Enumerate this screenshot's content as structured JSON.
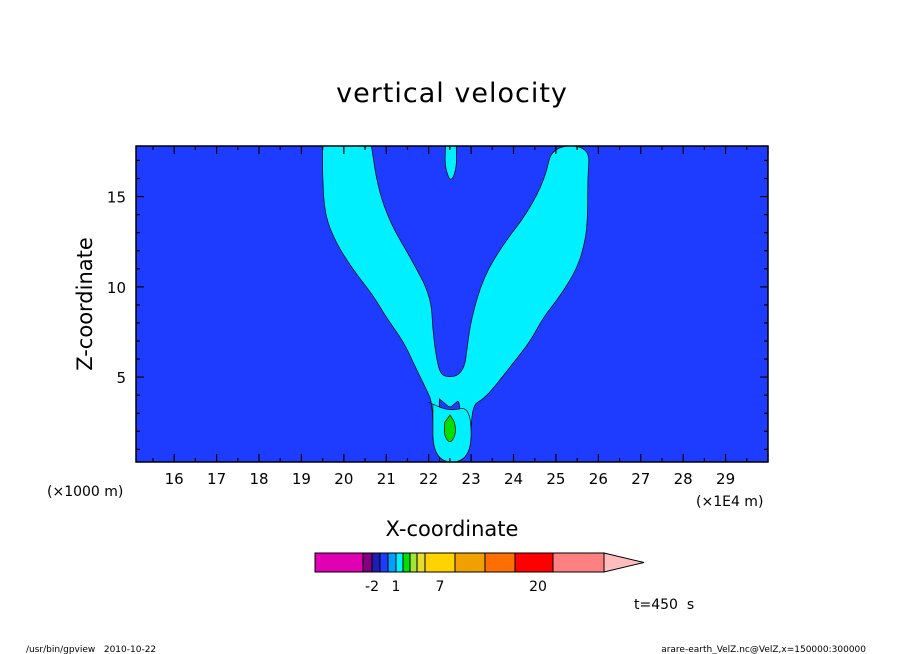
{
  "chart_data": {
    "type": "contour",
    "title": "vertical velocity",
    "xlabel": "X-coordinate",
    "ylabel": "Z-coordinate",
    "x_unit": "(×1E4 m)",
    "y_unit": "(×1000 m)",
    "xlim": [
      15.1,
      30.0
    ],
    "ylim": [
      0.3,
      17.8
    ],
    "x_ticks": [
      "16",
      "17",
      "18",
      "19",
      "20",
      "21",
      "22",
      "23",
      "24",
      "25",
      "26",
      "27",
      "28",
      "29"
    ],
    "y_ticks": [
      "5",
      "10",
      "15"
    ],
    "x_tick_values": [
      16,
      17,
      18,
      19,
      20,
      21,
      22,
      23,
      24,
      25,
      26,
      27,
      28,
      29
    ],
    "y_tick_values": [
      5,
      10,
      15
    ],
    "background_color": "#1e3cff",
    "regions": [
      {
        "name": "cyan-plume",
        "color": "#00f0ff",
        "points": [
          [
            19.5,
            17.8
          ],
          [
            19.5,
            16.0
          ],
          [
            19.55,
            14.0
          ],
          [
            19.8,
            12.5
          ],
          [
            20.2,
            11.0
          ],
          [
            20.7,
            9.5
          ],
          [
            21.0,
            8.3
          ],
          [
            21.4,
            7.0
          ],
          [
            21.7,
            5.5
          ],
          [
            21.95,
            4.3
          ],
          [
            22.1,
            3.5
          ],
          [
            22.1,
            0.3
          ],
          [
            23.0,
            0.3
          ],
          [
            23.0,
            3.4
          ],
          [
            23.3,
            3.8
          ],
          [
            23.6,
            4.6
          ],
          [
            24.0,
            5.8
          ],
          [
            24.4,
            7.0
          ],
          [
            24.7,
            8.3
          ],
          [
            25.1,
            9.5
          ],
          [
            25.5,
            11.0
          ],
          [
            25.7,
            12.6
          ],
          [
            25.75,
            14.0
          ],
          [
            25.75,
            16.0
          ],
          [
            25.8,
            17.8
          ],
          [
            24.9,
            17.8
          ],
          [
            24.75,
            16.0
          ],
          [
            24.3,
            14.0
          ],
          [
            23.8,
            12.5
          ],
          [
            23.3,
            10.6
          ],
          [
            23.0,
            8.2
          ],
          [
            22.9,
            6.5
          ],
          [
            22.85,
            5.6
          ],
          [
            22.7,
            5.1
          ],
          [
            22.5,
            5.0
          ],
          [
            22.3,
            5.1
          ],
          [
            22.2,
            5.8
          ],
          [
            22.1,
            7.5
          ],
          [
            22.05,
            9.5
          ],
          [
            21.6,
            11.5
          ],
          [
            21.1,
            13.5
          ],
          [
            20.8,
            15.5
          ],
          [
            20.65,
            17.8
          ]
        ]
      },
      {
        "name": "blue-core",
        "color": "#1e3cff",
        "points": [
          [
            22.25,
            3.8
          ],
          [
            22.4,
            3.5
          ],
          [
            22.5,
            3.3
          ],
          [
            22.6,
            3.5
          ],
          [
            22.75,
            3.8
          ],
          [
            22.75,
            0.3
          ],
          [
            22.25,
            0.3
          ]
        ]
      },
      {
        "name": "cyan-core",
        "color": "#00f0ff",
        "points": [
          [
            22.0,
            3.6
          ],
          [
            22.5,
            3.1
          ],
          [
            23.0,
            3.4
          ],
          [
            23.0,
            0.3
          ],
          [
            22.1,
            0.3
          ],
          [
            22.1,
            3.5
          ]
        ]
      },
      {
        "name": "green-cell",
        "color": "#00e000",
        "points": [
          [
            22.5,
            2.9
          ],
          [
            22.62,
            2.5
          ],
          [
            22.64,
            1.8
          ],
          [
            22.5,
            1.3
          ],
          [
            22.36,
            1.8
          ],
          [
            22.38,
            2.5
          ]
        ]
      },
      {
        "name": "cyan-top-blob",
        "color": "#00f0ff",
        "points": [
          [
            22.4,
            17.8
          ],
          [
            22.38,
            16.8
          ],
          [
            22.45,
            16.15
          ],
          [
            22.52,
            15.9
          ],
          [
            22.6,
            16.15
          ],
          [
            22.66,
            16.8
          ],
          [
            22.65,
            17.8
          ]
        ]
      }
    ],
    "colorbar": {
      "colors": [
        "#e000b4",
        "#800080",
        "#1e1eb4",
        "#1e3cff",
        "#00a0ff",
        "#00f0ff",
        "#00e000",
        "#a0e632",
        "#e6dc32",
        "#ffd200",
        "#f0a000",
        "#ff6e00",
        "#ff0000",
        "#ff8080",
        "#ffbcbc"
      ],
      "labels": [
        "-2",
        "1",
        "7",
        "20"
      ]
    },
    "time_label": "t=450  s"
  },
  "footer": {
    "left": "/usr/bin/gpview   2010-10-22",
    "right": "arare-earth_VelZ.nc@VelZ,x=150000:300000"
  }
}
